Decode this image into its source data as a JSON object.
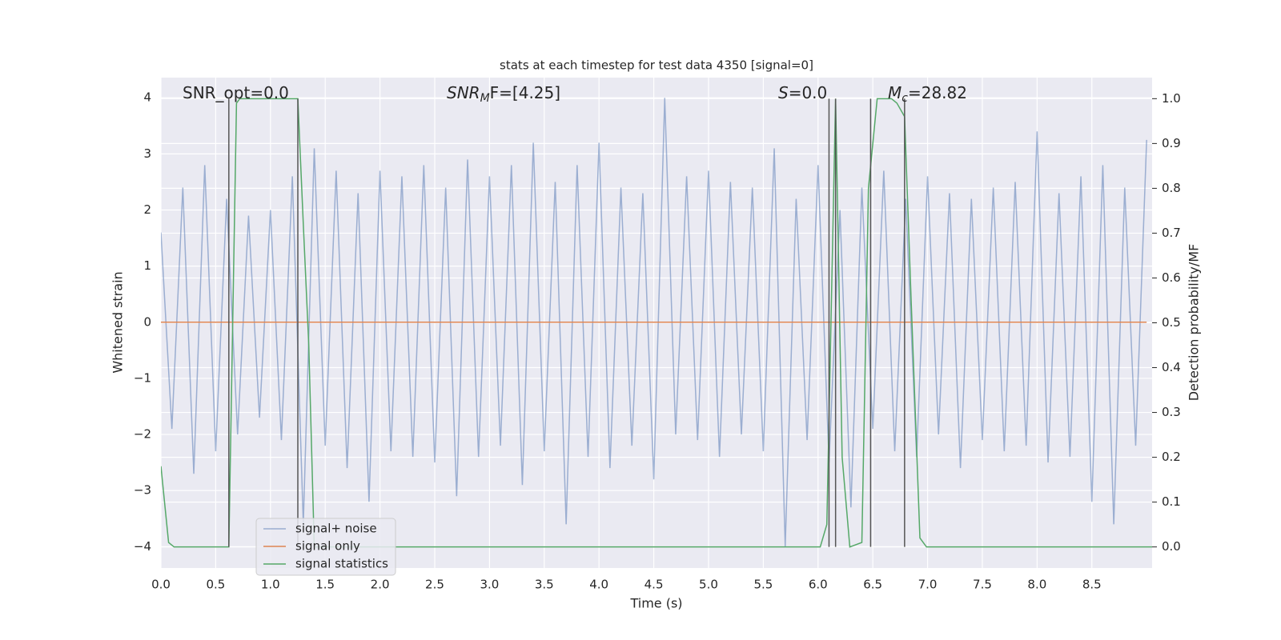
{
  "chart_data": {
    "type": "line",
    "title": "stats at each timestep for test data 4350 [signal=0]",
    "xlabel": "Time (s)",
    "ylabel": "Whitened strain",
    "y2label": "Detection probability/MF",
    "xlim": [
      0,
      9.05
    ],
    "ylim": [
      -4.38,
      4.36
    ],
    "y2lim": [
      -0.047,
      1.047
    ],
    "xticks": [
      {
        "value": 0,
        "label": "0.0"
      },
      0.5,
      {
        "value": 1,
        "label": "1.0"
      },
      1.5,
      {
        "value": 2,
        "label": "2.0"
      },
      2.5,
      {
        "value": 3,
        "label": "3.0"
      },
      3.5,
      {
        "value": 4,
        "label": "4.0"
      },
      4.5,
      {
        "value": 5,
        "label": "5.0"
      },
      5.5,
      {
        "value": 6,
        "label": "6.0"
      },
      6.5,
      {
        "value": 7,
        "label": "7.0"
      },
      7.5,
      {
        "value": 8,
        "label": "8.0"
      },
      8.5
    ],
    "yticks": [
      {
        "value": -4,
        "label": "−4"
      },
      {
        "value": -3,
        "label": "−3"
      },
      {
        "value": -2,
        "label": "−2"
      },
      {
        "value": -1,
        "label": "−1"
      },
      0,
      1,
      2,
      3,
      4
    ],
    "y2ticks": [
      {
        "value": 0,
        "label": "0.0"
      },
      0.1,
      0.2,
      0.3,
      0.4,
      0.5,
      0.6,
      0.7,
      0.8,
      0.9,
      {
        "value": 1,
        "label": "1.0"
      }
    ],
    "grid": true,
    "series": [
      {
        "name": "signal+ noise",
        "color": "#4c72b0",
        "opacity": 0.5,
        "x": [
          0,
          0.1,
          0.2,
          0.3,
          0.4,
          0.5,
          0.6,
          0.7,
          0.8,
          0.9,
          1,
          1.1,
          1.2,
          1.3,
          1.4,
          1.5,
          1.6,
          1.7,
          1.8,
          1.9,
          2,
          2.1,
          2.2,
          2.3,
          2.4,
          2.5,
          2.6,
          2.7,
          2.8,
          2.9,
          3,
          3.1,
          3.2,
          3.3,
          3.4,
          3.5,
          3.6,
          3.7,
          3.8,
          3.9,
          4,
          4.1,
          4.2,
          4.3,
          4.4,
          4.5,
          4.6,
          4.7,
          4.8,
          4.9,
          5,
          5.1,
          5.2,
          5.3,
          5.4,
          5.5,
          5.6,
          5.7,
          5.8,
          5.9,
          6,
          6.1,
          6.2,
          6.3,
          6.4,
          6.5,
          6.6,
          6.7,
          6.8,
          6.9,
          7,
          7.1,
          7.2,
          7.3,
          7.4,
          7.5,
          7.6,
          7.7,
          7.8,
          7.9,
          8,
          8.1,
          8.2,
          8.3,
          8.4,
          8.5,
          8.6,
          8.7,
          8.8,
          8.9,
          9
        ],
        "values": [
          1.6,
          -1.9,
          2.4,
          -2.7,
          2.8,
          -2.3,
          2.2,
          -2.0,
          1.9,
          -1.7,
          2.0,
          -2.1,
          2.6,
          -3.6,
          3.1,
          -2.2,
          2.7,
          -2.6,
          2.3,
          -3.2,
          2.7,
          -2.3,
          2.6,
          -2.4,
          2.8,
          -2.5,
          2.4,
          -3.1,
          2.9,
          -2.4,
          2.6,
          -2.2,
          2.8,
          -2.9,
          3.2,
          -2.3,
          2.5,
          -3.6,
          2.8,
          -2.4,
          3.2,
          -2.6,
          2.4,
          -2.2,
          2.3,
          -2.8,
          4.0,
          -2.0,
          2.6,
          -2.1,
          2.7,
          -2.4,
          2.5,
          -2.0,
          2.4,
          -2.3,
          3.1,
          -4.0,
          2.2,
          -2.1,
          2.8,
          -2.5,
          2.0,
          -3.3,
          2.4,
          -1.9,
          2.7,
          -2.3,
          2.2,
          -2.4,
          2.6,
          -2.0,
          2.3,
          -2.6,
          2.2,
          -2.1,
          2.4,
          -2.3,
          2.5,
          -2.2,
          3.4,
          -2.5,
          2.3,
          -2.4,
          2.6,
          -3.2,
          2.8,
          -3.6,
          2.4,
          -2.2,
          3.25
        ]
      },
      {
        "name": "signal only",
        "color": "#dd8452",
        "x": [
          0,
          9
        ],
        "values": [
          0,
          0
        ]
      },
      {
        "name": "signal statistics",
        "color": "#55a868",
        "axis": "y2",
        "x": [
          0,
          0.07,
          0.12,
          0.62,
          0.69,
          0.72,
          1.25,
          1.3,
          1.35,
          1.4,
          6.02,
          6.08,
          6.16,
          6.22,
          6.29,
          6.4,
          6.46,
          6.54,
          6.67,
          6.72,
          6.79,
          6.85,
          6.93,
          6.99,
          9.05
        ],
        "values": [
          0.18,
          0.01,
          0,
          0,
          0.99,
          1.0,
          1.0,
          0.72,
          0.45,
          0,
          0,
          0.05,
          1.0,
          0.2,
          0,
          0.01,
          0.8,
          1.0,
          1.0,
          0.99,
          0.96,
          0.55,
          0.02,
          0,
          0
        ]
      }
    ],
    "vlines": [
      0.62,
      1.25,
      6.1,
      6.16,
      6.48,
      6.79
    ],
    "vline_color": "#555555",
    "vline_ymin": 0,
    "vline_ymax": 1,
    "annotations": [
      [
        {
          "text": "SNR_opt=0.0"
        }
      ],
      [
        {
          "text": "SNR",
          "italic": true
        },
        {
          "text": "M",
          "italic": true,
          "sub": true
        },
        {
          "text": "F=[4.25]"
        }
      ],
      [
        {
          "text": "S",
          "italic": true
        },
        {
          "text": "=0.0"
        }
      ],
      [
        {
          "text": "M",
          "italic": true
        },
        {
          "text": "c",
          "italic": true,
          "sub": true
        },
        {
          "text": "=28.82"
        }
      ]
    ]
  }
}
